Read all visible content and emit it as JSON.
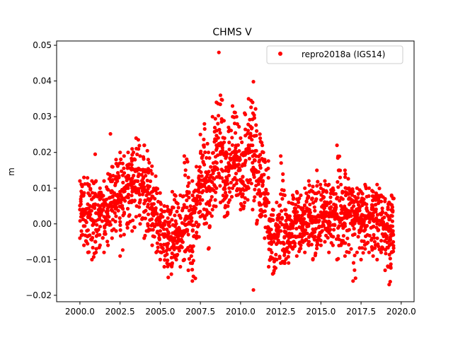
{
  "chart_data": {
    "type": "scatter",
    "title": "CHMS V",
    "xlabel": "",
    "ylabel": "m",
    "xlim": [
      1998.55,
      2020.8
    ],
    "ylim": [
      -0.0218,
      0.0512
    ],
    "grid": false,
    "legend_placement": "top-right",
    "xticks": [
      2000.0,
      2002.5,
      2005.0,
      2007.5,
      2010.0,
      2012.5,
      2015.0,
      2017.5,
      2020.0
    ],
    "xtick_labels": [
      "2000.0",
      "2002.5",
      "2005.0",
      "2007.5",
      "2010.0",
      "2012.5",
      "2015.0",
      "2017.5",
      "2020.0"
    ],
    "yticks": [
      -0.02,
      -0.01,
      0.0,
      0.01,
      0.02,
      0.03,
      0.04,
      0.05
    ],
    "ytick_labels": [
      "−0.02",
      "−0.01",
      "0.00",
      "0.01",
      "0.02",
      "0.03",
      "0.04",
      "0.05"
    ],
    "series": [
      {
        "name": "repro2018a (IGS14)",
        "color": "#ff0000",
        "marker": "circle",
        "columns_note": "each entry: [decimal year, lower envelope, typical value, upper envelope] in m",
        "columns": [
          [
            2000.0,
            -0.004,
            0.004,
            0.012
          ],
          [
            2000.25,
            -0.006,
            0.003,
            0.013
          ],
          [
            2000.5,
            -0.008,
            0.002,
            0.011
          ],
          [
            2000.75,
            -0.01,
            0.001,
            0.012
          ],
          [
            2001.0,
            -0.008,
            0.003,
            0.012
          ],
          [
            2001.25,
            -0.006,
            0.004,
            0.01
          ],
          [
            2001.5,
            -0.008,
            0.002,
            0.012
          ],
          [
            2001.75,
            -0.006,
            0.005,
            0.014
          ],
          [
            2002.0,
            -0.004,
            0.006,
            0.016
          ],
          [
            2002.25,
            -0.002,
            0.008,
            0.018
          ],
          [
            2002.5,
            -0.009,
            0.009,
            0.02
          ],
          [
            2002.75,
            -0.003,
            0.01,
            0.019
          ],
          [
            2003.0,
            0.0,
            0.011,
            0.02
          ],
          [
            2003.25,
            -0.002,
            0.01,
            0.021
          ],
          [
            2003.5,
            0.002,
            0.012,
            0.024
          ],
          [
            2003.75,
            0.0,
            0.011,
            0.019
          ],
          [
            2004.0,
            -0.004,
            0.009,
            0.022
          ],
          [
            2004.25,
            -0.002,
            0.007,
            0.018
          ],
          [
            2004.5,
            -0.006,
            0.004,
            0.014
          ],
          [
            2004.75,
            -0.008,
            0.001,
            0.01
          ],
          [
            2005.0,
            -0.01,
            -0.002,
            0.006
          ],
          [
            2005.25,
            -0.012,
            -0.003,
            0.005
          ],
          [
            2005.5,
            -0.015,
            -0.004,
            0.004
          ],
          [
            2005.75,
            -0.011,
            -0.004,
            0.009
          ],
          [
            2006.0,
            -0.01,
            -0.003,
            0.006
          ],
          [
            2006.25,
            -0.012,
            -0.002,
            0.008
          ],
          [
            2006.5,
            -0.01,
            0.0,
            0.019
          ],
          [
            2006.75,
            -0.013,
            0.002,
            0.013
          ],
          [
            2007.0,
            -0.016,
            0.003,
            0.012
          ],
          [
            2007.25,
            -0.004,
            0.007,
            0.016
          ],
          [
            2007.5,
            0.002,
            0.011,
            0.025
          ],
          [
            2007.75,
            0.0,
            0.012,
            0.028
          ],
          [
            2008.0,
            -0.007,
            0.01,
            0.02
          ],
          [
            2008.25,
            0.004,
            0.015,
            0.03
          ],
          [
            2008.5,
            0.01,
            0.022,
            0.034
          ],
          [
            2008.75,
            0.006,
            0.02,
            0.036
          ],
          [
            2009.0,
            0.002,
            0.012,
            0.024
          ],
          [
            2009.25,
            0.006,
            0.016,
            0.027
          ],
          [
            2009.5,
            0.01,
            0.02,
            0.033
          ],
          [
            2009.75,
            0.008,
            0.018,
            0.03
          ],
          [
            2010.0,
            0.004,
            0.012,
            0.024
          ],
          [
            2010.25,
            0.006,
            0.02,
            0.031
          ],
          [
            2010.5,
            0.01,
            0.022,
            0.035
          ],
          [
            2010.75,
            0.004,
            0.015,
            0.034
          ],
          [
            2011.0,
            0.0,
            0.012,
            0.026
          ],
          [
            2011.25,
            0.002,
            0.012,
            0.023
          ],
          [
            2011.5,
            -0.004,
            0.006,
            0.018
          ],
          [
            2011.75,
            -0.012,
            -0.004,
            0.006
          ],
          [
            2012.0,
            -0.014,
            -0.004,
            0.004
          ],
          [
            2012.25,
            -0.01,
            -0.002,
            0.006
          ],
          [
            2012.5,
            -0.011,
            -0.002,
            0.019
          ],
          [
            2012.75,
            -0.011,
            -0.001,
            0.008
          ],
          [
            2013.0,
            -0.008,
            -0.001,
            0.006
          ],
          [
            2013.25,
            -0.007,
            0.0,
            0.008
          ],
          [
            2013.5,
            -0.009,
            0.001,
            0.009
          ],
          [
            2013.75,
            -0.006,
            0.001,
            0.008
          ],
          [
            2014.0,
            -0.008,
            0.0,
            0.01
          ],
          [
            2014.25,
            -0.006,
            0.002,
            0.012
          ],
          [
            2014.5,
            -0.01,
            0.001,
            0.009
          ],
          [
            2014.75,
            -0.006,
            0.002,
            0.015
          ],
          [
            2015.0,
            -0.006,
            0.002,
            0.01
          ],
          [
            2015.25,
            -0.005,
            0.003,
            0.012
          ],
          [
            2015.5,
            -0.008,
            0.002,
            0.011
          ],
          [
            2015.75,
            -0.006,
            0.003,
            0.01
          ],
          [
            2016.0,
            -0.01,
            0.002,
            0.022
          ],
          [
            2016.25,
            -0.006,
            0.003,
            0.011
          ],
          [
            2016.5,
            -0.009,
            0.002,
            0.015
          ],
          [
            2016.75,
            -0.008,
            0.002,
            0.01
          ],
          [
            2017.0,
            -0.016,
            0.001,
            0.009
          ],
          [
            2017.25,
            -0.008,
            0.002,
            0.01
          ],
          [
            2017.5,
            -0.01,
            0.001,
            0.009
          ],
          [
            2017.75,
            -0.007,
            0.002,
            0.011
          ],
          [
            2018.0,
            -0.008,
            0.002,
            0.01
          ],
          [
            2018.25,
            -0.009,
            0.001,
            0.009
          ],
          [
            2018.5,
            -0.01,
            0.0,
            0.011
          ],
          [
            2018.75,
            -0.008,
            0.0,
            0.008
          ],
          [
            2019.0,
            -0.013,
            -0.001,
            0.007
          ],
          [
            2019.25,
            -0.017,
            -0.002,
            0.006
          ],
          [
            2019.4,
            -0.008,
            -0.002,
            0.008
          ]
        ],
        "outliers": [
          [
            2008.65,
            0.048
          ],
          [
            2010.8,
            0.0398
          ],
          [
            2010.8,
            -0.0185
          ],
          [
            2001.9,
            0.0252
          ],
          [
            2000.95,
            0.0195
          ]
        ]
      }
    ]
  }
}
